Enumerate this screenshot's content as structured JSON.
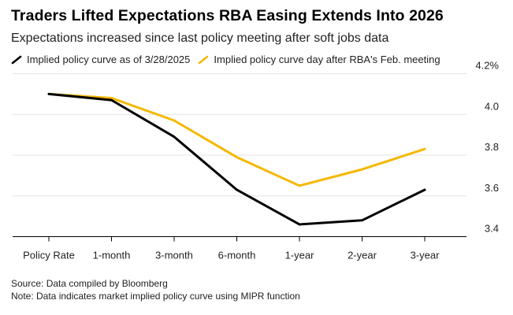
{
  "chart_data": {
    "type": "line",
    "title": "Traders Lifted Expectations RBA Easing Extends Into 2026",
    "subtitle": "Expectations increased since last policy meeting after soft jobs data",
    "categories": [
      "Policy Rate",
      "1-month",
      "3-month",
      "6-month",
      "1-year",
      "2-year",
      "3-year"
    ],
    "series": [
      {
        "name": "Implied policy curve as of 3/28/2025",
        "color": "#000000",
        "values": [
          4.1,
          4.07,
          3.89,
          3.63,
          3.46,
          3.48,
          3.63
        ]
      },
      {
        "name": "Implied policy curve day after RBA's Feb. meeting",
        "color": "#F5B800",
        "values": [
          4.1,
          4.08,
          3.97,
          3.79,
          3.65,
          3.73,
          3.83
        ]
      }
    ],
    "y_ticks": [
      3.4,
      3.6,
      3.8,
      4.0,
      4.2
    ],
    "y_tick_labels": [
      "3.4",
      "3.6",
      "3.8",
      "4.0",
      "4.2%"
    ],
    "ylim": [
      3.4,
      4.2
    ],
    "grid": true,
    "y_axis_position": "right",
    "legend_position": "top-left"
  },
  "footer": {
    "source": "Source: Data compiled by Bloomberg",
    "note": "Note: Data indicates market implied policy curve using MIPR function"
  }
}
